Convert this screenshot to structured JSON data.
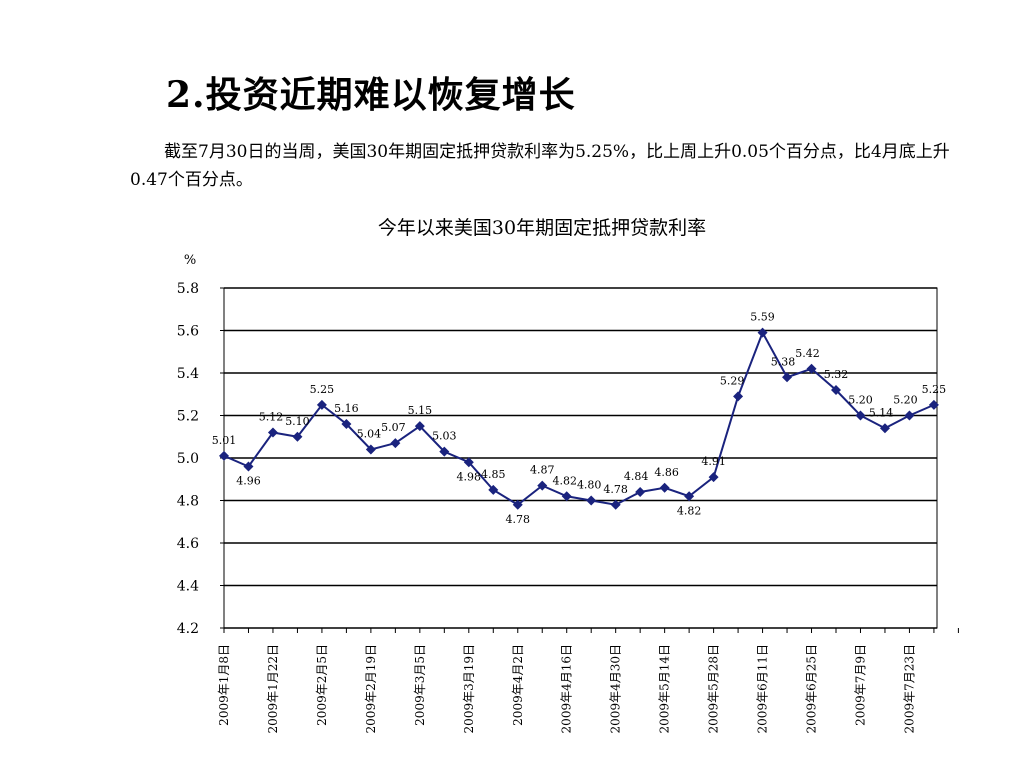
{
  "heading": "2.投资近期难以恢复增长",
  "paragraph": "截至7月30日的当周，美国30年期固定抵押贷款利率为5.25%，比上周上升0.05个百分点，比4月底上升0.47个百分点。",
  "chart_data": {
    "type": "line",
    "title": "今年以来美国30年期固定抵押贷款利率",
    "ylabel": "%",
    "xlabel": "",
    "ylim": [
      4.2,
      5.8
    ],
    "yticks": [
      "4.2",
      "4.4",
      "4.6",
      "4.8",
      "5.0",
      "5.2",
      "5.4",
      "5.6",
      "5.8"
    ],
    "grid": true,
    "legend": "none",
    "line_color": "#1a237e",
    "x_tick_labels": [
      "2009年1月8日",
      "2009年1月22日",
      "2009年2月5日",
      "2009年2月19日",
      "2009年3月5日",
      "2009年3月19日",
      "2009年4月2日",
      "2009年4月16日",
      "2009年4月30日",
      "2009年5月14日",
      "2009年5月28日",
      "2009年6月11日",
      "2009年6月25日",
      "2009年7月9日",
      "2009年7月23日"
    ],
    "series": [
      {
        "values": [
          5.01,
          4.96,
          5.12,
          5.1,
          5.25,
          5.16,
          5.04,
          5.07,
          5.15,
          5.03,
          4.98,
          4.85,
          4.78,
          4.87,
          4.82,
          4.8,
          4.78,
          4.84,
          4.86,
          4.82,
          4.91,
          5.29,
          5.59,
          5.38,
          5.42,
          5.32,
          5.2,
          5.14,
          5.2,
          5.25
        ],
        "data_labels": [
          "5.01",
          "4.96",
          "5.12",
          "5.10",
          "5.25",
          "5.16",
          "5.04",
          "5.07",
          "5.15",
          "5.03",
          "4.98",
          "4.85",
          "4.78",
          "4.87",
          "4.82",
          "4.80",
          "4.78",
          "4.84",
          "4.86",
          "4.82",
          "4.91",
          "5.29",
          "5.59",
          "5.38",
          "5.42",
          "5.32",
          "5.20",
          "5.14",
          "5.20",
          "5.25"
        ]
      }
    ]
  }
}
